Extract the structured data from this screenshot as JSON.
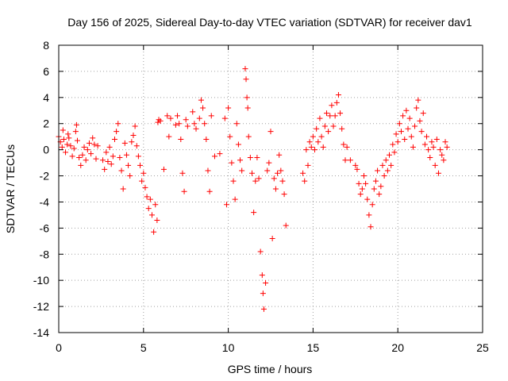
{
  "chart_data": {
    "type": "scatter",
    "title": "Day 156 of 2025, Sidereal Day-to-day VTEC variation (SDTVAR) for receiver dav1",
    "xlabel": "GPS time / hours",
    "ylabel": "SDTVAR / TECUs",
    "xlim": [
      0,
      25
    ],
    "ylim": [
      -14,
      8
    ],
    "xticks": [
      0,
      5,
      10,
      15,
      20,
      25
    ],
    "yticks": [
      -14,
      -12,
      -10,
      -8,
      -6,
      -4,
      -2,
      0,
      2,
      4,
      6,
      8
    ],
    "grid": true,
    "marker": "+",
    "series": [
      {
        "name": "SDTVAR",
        "color": "#ff0000",
        "points": [
          [
            0.0,
            1.0
          ],
          [
            0.1,
            0.6
          ],
          [
            0.2,
            0.2
          ],
          [
            0.25,
            1.5
          ],
          [
            0.3,
            0.8
          ],
          [
            0.4,
            -0.2
          ],
          [
            0.5,
            0.4
          ],
          [
            0.55,
            1.2
          ],
          [
            0.6,
            0.9
          ],
          [
            0.7,
            0.3
          ],
          [
            0.8,
            -0.5
          ],
          [
            0.9,
            0.1
          ],
          [
            1.0,
            1.4
          ],
          [
            1.05,
            1.9
          ],
          [
            1.1,
            0.7
          ],
          [
            1.2,
            -0.6
          ],
          [
            1.3,
            -1.2
          ],
          [
            1.4,
            -0.4
          ],
          [
            1.5,
            0.2
          ],
          [
            1.6,
            -0.8
          ],
          [
            1.7,
            0.0
          ],
          [
            1.8,
            0.5
          ],
          [
            1.9,
            -0.3
          ],
          [
            2.0,
            0.9
          ],
          [
            2.1,
            0.4
          ],
          [
            2.2,
            -0.7
          ],
          [
            2.3,
            0.3
          ],
          [
            2.6,
            -0.8
          ],
          [
            2.7,
            -1.5
          ],
          [
            2.8,
            -0.2
          ],
          [
            2.9,
            -0.9
          ],
          [
            3.0,
            0.2
          ],
          [
            3.1,
            -1.1
          ],
          [
            3.2,
            -0.5
          ],
          [
            3.3,
            0.8
          ],
          [
            3.4,
            1.4
          ],
          [
            3.5,
            2.0
          ],
          [
            3.6,
            -0.6
          ],
          [
            3.7,
            -1.6
          ],
          [
            3.8,
            -3.0
          ],
          [
            3.9,
            0.5
          ],
          [
            4.0,
            -0.4
          ],
          [
            4.1,
            -1.2
          ],
          [
            4.2,
            -2.0
          ],
          [
            4.3,
            0.6
          ],
          [
            4.4,
            1.1
          ],
          [
            4.5,
            1.8
          ],
          [
            4.6,
            0.3
          ],
          [
            4.7,
            -0.5
          ],
          [
            4.8,
            -1.2
          ],
          [
            4.9,
            -2.4
          ],
          [
            5.0,
            -1.8
          ],
          [
            5.1,
            -2.9
          ],
          [
            5.2,
            -3.6
          ],
          [
            5.3,
            -4.5
          ],
          [
            5.4,
            -3.8
          ],
          [
            5.5,
            -5.0
          ],
          [
            5.6,
            -6.3
          ],
          [
            5.7,
            -4.2
          ],
          [
            5.8,
            -5.4
          ],
          [
            5.85,
            2.1
          ],
          [
            5.9,
            2.3
          ],
          [
            6.0,
            2.2
          ],
          [
            6.2,
            -1.5
          ],
          [
            6.4,
            2.6
          ],
          [
            6.5,
            1.0
          ],
          [
            6.6,
            2.4
          ],
          [
            6.9,
            1.9
          ],
          [
            7.0,
            2.6
          ],
          [
            7.1,
            2.0
          ],
          [
            7.2,
            0.8
          ],
          [
            7.3,
            -1.8
          ],
          [
            7.4,
            -3.2
          ],
          [
            7.5,
            2.3
          ],
          [
            7.6,
            1.8
          ],
          [
            7.9,
            2.9
          ],
          [
            8.0,
            2.0
          ],
          [
            8.1,
            1.6
          ],
          [
            8.3,
            2.4
          ],
          [
            8.4,
            3.8
          ],
          [
            8.5,
            3.2
          ],
          [
            8.6,
            2.0
          ],
          [
            8.7,
            0.8
          ],
          [
            8.8,
            -1.6
          ],
          [
            8.9,
            -3.2
          ],
          [
            9.0,
            2.6
          ],
          [
            9.2,
            -0.5
          ],
          [
            9.5,
            -0.3
          ],
          [
            9.8,
            2.4
          ],
          [
            9.9,
            -4.2
          ],
          [
            10.0,
            3.2
          ],
          [
            10.1,
            1.0
          ],
          [
            10.2,
            -1.0
          ],
          [
            10.3,
            -2.4
          ],
          [
            10.4,
            -3.8
          ],
          [
            10.5,
            2.0
          ],
          [
            10.6,
            0.4
          ],
          [
            10.7,
            -0.8
          ],
          [
            10.8,
            -1.6
          ],
          [
            11.0,
            6.2
          ],
          [
            11.05,
            5.4
          ],
          [
            11.1,
            4.0
          ],
          [
            11.15,
            3.2
          ],
          [
            11.2,
            1.0
          ],
          [
            11.3,
            -0.6
          ],
          [
            11.4,
            -1.8
          ],
          [
            11.5,
            -4.8
          ],
          [
            11.6,
            -2.4
          ],
          [
            11.7,
            -0.6
          ],
          [
            11.8,
            -2.2
          ],
          [
            11.9,
            -7.8
          ],
          [
            12.0,
            -9.6
          ],
          [
            12.05,
            -11.0
          ],
          [
            12.1,
            -12.2
          ],
          [
            12.2,
            -10.2
          ],
          [
            12.3,
            -1.6
          ],
          [
            12.4,
            -1.0
          ],
          [
            12.5,
            1.4
          ],
          [
            12.6,
            -6.8
          ],
          [
            12.7,
            -2.2
          ],
          [
            12.8,
            -3.0
          ],
          [
            12.9,
            -1.8
          ],
          [
            13.0,
            -0.4
          ],
          [
            13.1,
            -1.6
          ],
          [
            13.2,
            -2.4
          ],
          [
            13.3,
            -3.4
          ],
          [
            13.4,
            -5.8
          ],
          [
            14.4,
            -1.8
          ],
          [
            14.5,
            -2.4
          ],
          [
            14.6,
            0.0
          ],
          [
            14.7,
            -1.2
          ],
          [
            14.8,
            0.6
          ],
          [
            14.9,
            0.2
          ],
          [
            15.0,
            1.0
          ],
          [
            15.1,
            0.0
          ],
          [
            15.2,
            1.6
          ],
          [
            15.3,
            0.6
          ],
          [
            15.4,
            2.4
          ],
          [
            15.5,
            1.0
          ],
          [
            15.6,
            0.2
          ],
          [
            15.7,
            1.8
          ],
          [
            15.8,
            2.8
          ],
          [
            15.9,
            1.4
          ],
          [
            16.0,
            2.6
          ],
          [
            16.1,
            3.4
          ],
          [
            16.2,
            1.8
          ],
          [
            16.3,
            2.6
          ],
          [
            16.4,
            3.6
          ],
          [
            16.5,
            4.2
          ],
          [
            16.6,
            2.8
          ],
          [
            16.7,
            1.6
          ],
          [
            16.8,
            0.4
          ],
          [
            16.9,
            -0.8
          ],
          [
            17.0,
            0.2
          ],
          [
            17.2,
            -0.8
          ],
          [
            17.5,
            -1.2
          ],
          [
            17.6,
            -1.5
          ],
          [
            17.7,
            -2.6
          ],
          [
            17.8,
            -3.4
          ],
          [
            17.9,
            -3.0
          ],
          [
            18.0,
            -2.0
          ],
          [
            18.1,
            -2.6
          ],
          [
            18.2,
            -3.8
          ],
          [
            18.3,
            -5.0
          ],
          [
            18.4,
            -5.9
          ],
          [
            18.5,
            -4.2
          ],
          [
            18.6,
            -3.0
          ],
          [
            18.7,
            -2.4
          ],
          [
            18.8,
            -1.6
          ],
          [
            18.9,
            -3.4
          ],
          [
            19.0,
            -2.8
          ],
          [
            19.1,
            -1.2
          ],
          [
            19.2,
            -2.0
          ],
          [
            19.3,
            -0.8
          ],
          [
            19.4,
            -1.6
          ],
          [
            19.5,
            -0.4
          ],
          [
            19.6,
            -1.2
          ],
          [
            19.7,
            0.4
          ],
          [
            19.8,
            -0.2
          ],
          [
            19.9,
            1.2
          ],
          [
            20.0,
            0.6
          ],
          [
            20.1,
            2.0
          ],
          [
            20.2,
            1.4
          ],
          [
            20.3,
            2.6
          ],
          [
            20.4,
            0.8
          ],
          [
            20.5,
            3.0
          ],
          [
            20.6,
            1.6
          ],
          [
            20.7,
            2.4
          ],
          [
            20.8,
            1.0
          ],
          [
            20.9,
            0.2
          ],
          [
            21.0,
            1.8
          ],
          [
            21.1,
            3.2
          ],
          [
            21.2,
            3.8
          ],
          [
            21.3,
            2.2
          ],
          [
            21.4,
            1.4
          ],
          [
            21.5,
            2.8
          ],
          [
            21.6,
            0.4
          ],
          [
            21.7,
            1.0
          ],
          [
            21.8,
            0.0
          ],
          [
            21.9,
            -0.6
          ],
          [
            22.0,
            0.6
          ],
          [
            22.1,
            0.2
          ],
          [
            22.2,
            -1.2
          ],
          [
            22.3,
            0.8
          ],
          [
            22.4,
            -1.8
          ],
          [
            22.5,
            0.0
          ],
          [
            22.6,
            -0.4
          ],
          [
            22.7,
            -0.8
          ],
          [
            22.8,
            0.6
          ],
          [
            22.9,
            0.2
          ]
        ]
      }
    ]
  }
}
